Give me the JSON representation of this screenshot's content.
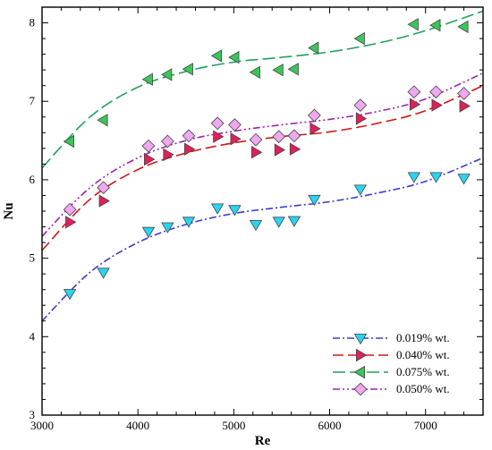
{
  "chart_data": {
    "type": "scatter",
    "xlabel": "Re",
    "ylabel": "Nu",
    "xlim": [
      3000,
      7600
    ],
    "ylim": [
      3,
      8.2
    ],
    "x_ticks": [
      3000,
      4000,
      5000,
      6000,
      7000
    ],
    "x_tick_labels": [
      "3000",
      "4000",
      "5000",
      "6000",
      "7000"
    ],
    "y_ticks": [
      3,
      4,
      5,
      6,
      7,
      8
    ],
    "y_tick_labels": [
      "3",
      "4",
      "5",
      "6",
      "7",
      "8"
    ],
    "grid": false,
    "legend_position": "bottom-right",
    "series": [
      {
        "name": "0.019% wt.",
        "color": "#29d4f2",
        "line_color": "#3b3bd0",
        "dash": "8,3,2,3",
        "marker": "triangle-down",
        "x": [
          3290,
          3640,
          4110,
          4310,
          4530,
          4830,
          5010,
          5230,
          5470,
          5630,
          5840,
          6320,
          6880,
          7110,
          7400
        ],
        "y": [
          4.55,
          4.82,
          5.34,
          5.4,
          5.47,
          5.64,
          5.62,
          5.43,
          5.47,
          5.48,
          5.75,
          5.88,
          6.04,
          6.04,
          6.02
        ],
        "fit_x": [
          3000,
          3500,
          4000,
          4500,
          5000,
          5500,
          6000,
          6500,
          7000,
          7600
        ],
        "fit_y": [
          4.2,
          4.82,
          5.2,
          5.43,
          5.57,
          5.65,
          5.72,
          5.83,
          5.98,
          6.28
        ]
      },
      {
        "name": "0.040% wt.",
        "color": "#e0205a",
        "line_color": "#d01818",
        "dash": "12,5",
        "marker": "triangle-right",
        "x": [
          3290,
          3640,
          4110,
          4310,
          4530,
          4830,
          5010,
          5230,
          5470,
          5630,
          5840,
          6320,
          6880,
          7110,
          7400
        ],
        "y": [
          5.46,
          5.73,
          6.26,
          6.32,
          6.39,
          6.55,
          6.52,
          6.35,
          6.38,
          6.39,
          6.65,
          6.78,
          6.96,
          6.95,
          6.94
        ],
        "fit_x": [
          3000,
          3500,
          4000,
          4500,
          5000,
          5500,
          6000,
          6500,
          7000,
          7600
        ],
        "fit_y": [
          5.1,
          5.75,
          6.13,
          6.34,
          6.47,
          6.55,
          6.61,
          6.72,
          6.88,
          7.2
        ]
      },
      {
        "name": "0.075% wt.",
        "color": "#3ac65a",
        "line_color": "#20a060",
        "dash": "14,5",
        "marker": "triangle-left",
        "x": [
          3290,
          3640,
          4110,
          4310,
          4530,
          4830,
          5010,
          5230,
          5470,
          5630,
          5840,
          6320,
          6880,
          7110,
          7400
        ],
        "y": [
          6.49,
          6.76,
          7.28,
          7.34,
          7.41,
          7.58,
          7.56,
          7.37,
          7.4,
          7.41,
          7.68,
          7.8,
          7.98,
          7.97,
          7.95
        ],
        "fit_x": [
          3000,
          3500,
          4000,
          4500,
          5000,
          5500,
          6000,
          6500,
          7000,
          7600
        ],
        "fit_y": [
          6.15,
          6.8,
          7.18,
          7.38,
          7.5,
          7.56,
          7.63,
          7.74,
          7.9,
          8.15
        ]
      },
      {
        "name": "0.050% wt.",
        "color": "#f0a8f0",
        "line_color": "#a020b0",
        "dash": "8,3,2,3,2,3",
        "marker": "diamond",
        "x": [
          3290,
          3640,
          4110,
          4310,
          4530,
          4830,
          5010,
          5230,
          5470,
          5630,
          5840,
          6320,
          6880,
          7110,
          7400
        ],
        "y": [
          5.62,
          5.9,
          6.43,
          6.49,
          6.56,
          6.72,
          6.7,
          6.51,
          6.55,
          6.56,
          6.82,
          6.95,
          7.12,
          7.12,
          7.1
        ],
        "fit_x": [
          3000,
          3500,
          4000,
          4500,
          5000,
          5500,
          6000,
          6500,
          7000,
          7600
        ],
        "fit_y": [
          5.28,
          5.9,
          6.28,
          6.5,
          6.62,
          6.7,
          6.77,
          6.87,
          7.03,
          7.36
        ]
      }
    ]
  }
}
